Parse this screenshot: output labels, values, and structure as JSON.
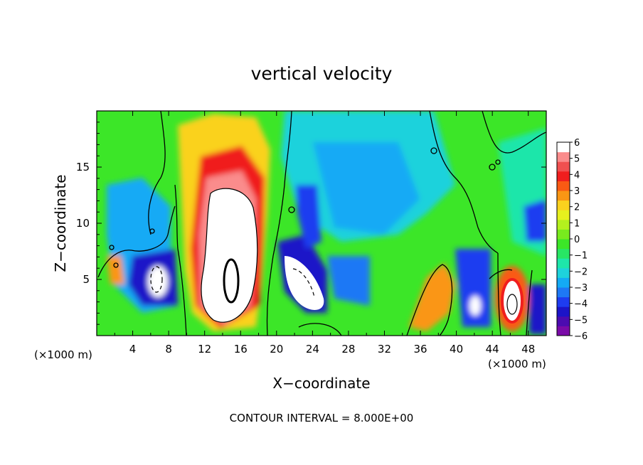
{
  "chart_data": {
    "type": "heatmap",
    "title": "vertical velocity",
    "xlabel": "X−coordinate",
    "ylabel": "Z−coordinate",
    "x_unit_left": "(×1000 m)",
    "x_unit_right": "(×1000 m)",
    "footer": "CONTOUR INTERVAL = 8.000E+00",
    "xlim": [
      0,
      50
    ],
    "ylim": [
      0,
      20
    ],
    "x_ticks": [
      "4",
      "8",
      "12",
      "16",
      "20",
      "24",
      "28",
      "32",
      "36",
      "40",
      "44",
      "48"
    ],
    "y_ticks": [
      "5",
      "10",
      "15"
    ],
    "colorbar": {
      "range": [
        -6,
        6
      ],
      "labels": [
        "6",
        "5",
        "4",
        "3",
        "2",
        "1",
        "0",
        "−1",
        "−2",
        "−3",
        "−4",
        "−5",
        "−6"
      ],
      "colors": [
        "#7a0aa8",
        "#4b0bb0",
        "#1c14c8",
        "#1e3cf0",
        "#1e78f5",
        "#14aaf5",
        "#1ed2dc",
        "#1ee6aa",
        "#28e664",
        "#3ce628",
        "#78eb1e",
        "#b4f01e",
        "#e6f01e",
        "#fad21e",
        "#fa9614",
        "#fa5a14",
        "#f01e1e",
        "#f05050",
        "#fa8c8c",
        "#ffffff"
      ]
    },
    "features": [
      {
        "name": "main updraft core",
        "x": 15,
        "z": 8,
        "w_max": 6
      },
      {
        "name": "downdraft",
        "x": 7,
        "z": 4,
        "w_min": -6
      },
      {
        "name": "downdraft",
        "x": 22,
        "z": 4.5,
        "w_min": -6
      },
      {
        "name": "updraft",
        "x": 37,
        "z": 2.5,
        "w_max": 4
      },
      {
        "name": "updraft core",
        "x": 46,
        "z": 3,
        "w_max": 6
      },
      {
        "name": "downdraft",
        "x": 42,
        "z": 3.5,
        "w_min": -6
      }
    ],
    "grid": false,
    "legend": "colorbar right"
  }
}
